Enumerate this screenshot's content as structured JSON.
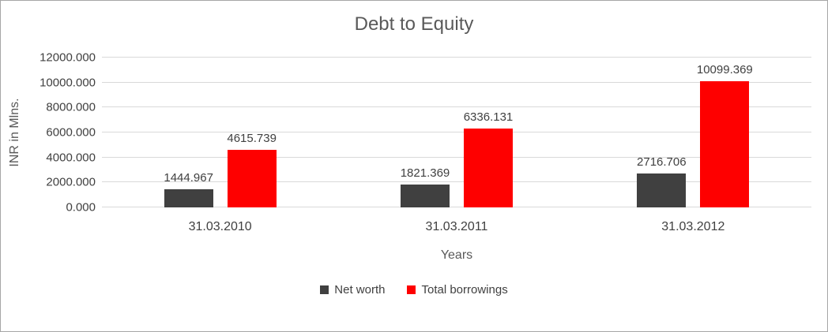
{
  "chart_data": {
    "type": "bar",
    "title": "Debt to Equity",
    "xlabel": "Years",
    "ylabel": "INR in Mlns.",
    "categories": [
      "31.03.2010",
      "31.03.2011",
      "31.03.2012"
    ],
    "series": [
      {
        "name": "Net worth",
        "color": "#404040",
        "values": [
          1444.967,
          1821.369,
          2716.706
        ],
        "labels": [
          "1444.967",
          "1821.369",
          "2716.706"
        ]
      },
      {
        "name": "Total borrowings",
        "color": "#fe0000",
        "values": [
          4615.739,
          6336.131,
          10099.369
        ],
        "labels": [
          "4615.739",
          "6336.131",
          "10099.369"
        ]
      }
    ],
    "ylim": [
      0,
      12000
    ],
    "yticks": [
      {
        "value": 0,
        "label": "0.000"
      },
      {
        "value": 2000,
        "label": "2000.000"
      },
      {
        "value": 4000,
        "label": "4000.000"
      },
      {
        "value": 6000,
        "label": "6000.000"
      },
      {
        "value": 8000,
        "label": "8000.000"
      },
      {
        "value": 10000,
        "label": "10000.000"
      },
      {
        "value": 12000,
        "label": "12000.000"
      }
    ],
    "grid": true,
    "legend_position": "bottom"
  }
}
